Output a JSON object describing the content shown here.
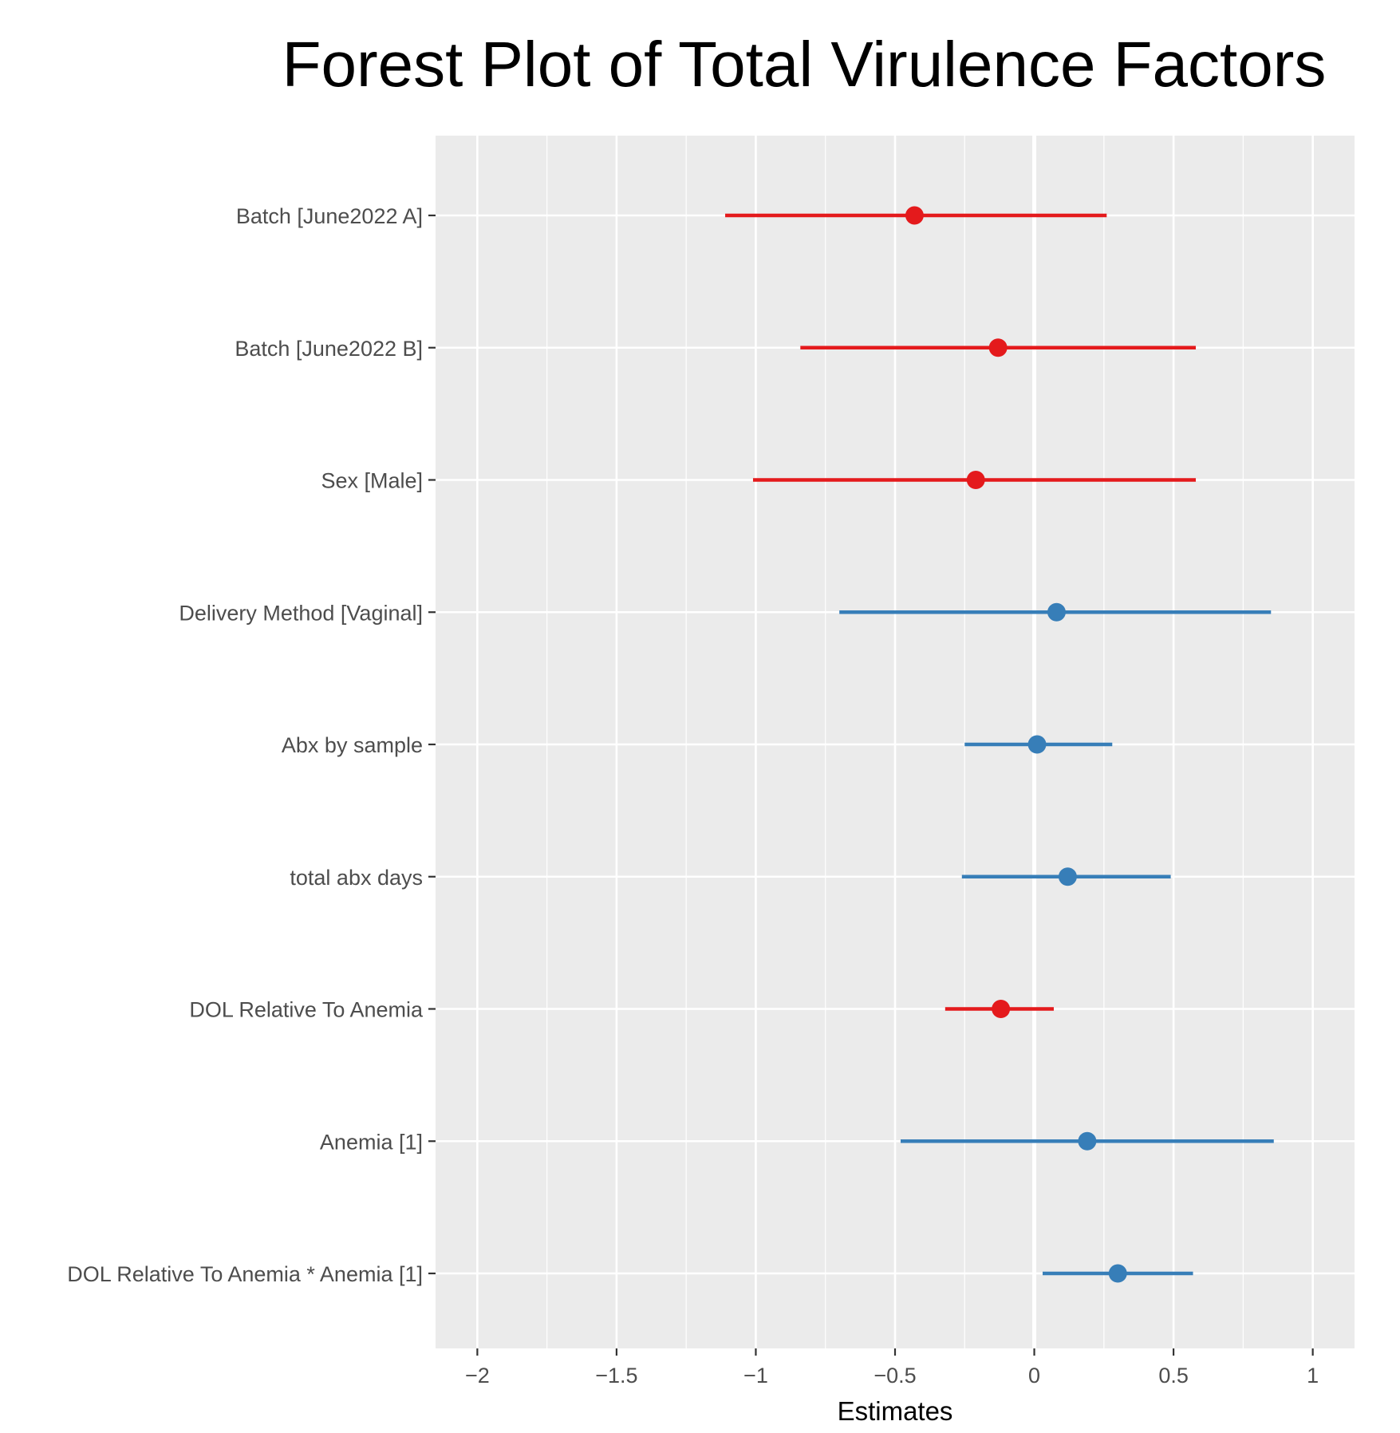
{
  "chart_data": {
    "type": "forest",
    "title": "Forest Plot of Total Virulence Factors",
    "xlabel": "Estimates",
    "ylabel": "",
    "xlim": [
      -2.15,
      1.15
    ],
    "x_ticks": [
      -2,
      -1.5,
      -1,
      -0.5,
      0,
      0.5,
      1
    ],
    "x_tick_labels": [
      "−2",
      "−1.5",
      "−1",
      "−0.5",
      "0",
      "0.5",
      "1"
    ],
    "x_minor_ticks": [
      -1.75,
      -1.25,
      -0.75,
      -0.25,
      0.25,
      0.75
    ],
    "reference_line": 0,
    "grid": true,
    "legend": "none",
    "colors": {
      "negative": "#e41a1c",
      "positive": "#377eb8",
      "panel": "#ebebeb",
      "grid": "#ffffff"
    },
    "terms": [
      {
        "label": "Batch [June2022 A]",
        "estimate": -0.43,
        "lower": -1.11,
        "upper": 0.26,
        "direction": "negative"
      },
      {
        "label": "Batch [June2022 B]",
        "estimate": -0.13,
        "lower": -0.84,
        "upper": 0.58,
        "direction": "negative"
      },
      {
        "label": "Sex [Male]",
        "estimate": -0.21,
        "lower": -1.01,
        "upper": 0.58,
        "direction": "negative"
      },
      {
        "label": "Delivery Method [Vaginal]",
        "estimate": 0.08,
        "lower": -0.7,
        "upper": 0.85,
        "direction": "positive"
      },
      {
        "label": "Abx by sample",
        "estimate": 0.01,
        "lower": -0.25,
        "upper": 0.28,
        "direction": "positive"
      },
      {
        "label": "total abx days",
        "estimate": 0.12,
        "lower": -0.26,
        "upper": 0.49,
        "direction": "positive"
      },
      {
        "label": "DOL Relative To Anemia",
        "estimate": -0.12,
        "lower": -0.32,
        "upper": 0.07,
        "direction": "negative"
      },
      {
        "label": "Anemia [1]",
        "estimate": 0.19,
        "lower": -0.48,
        "upper": 0.86,
        "direction": "positive"
      },
      {
        "label": "DOL Relative To Anemia * Anemia [1]",
        "estimate": 0.3,
        "lower": 0.03,
        "upper": 0.57,
        "direction": "positive"
      }
    ]
  }
}
